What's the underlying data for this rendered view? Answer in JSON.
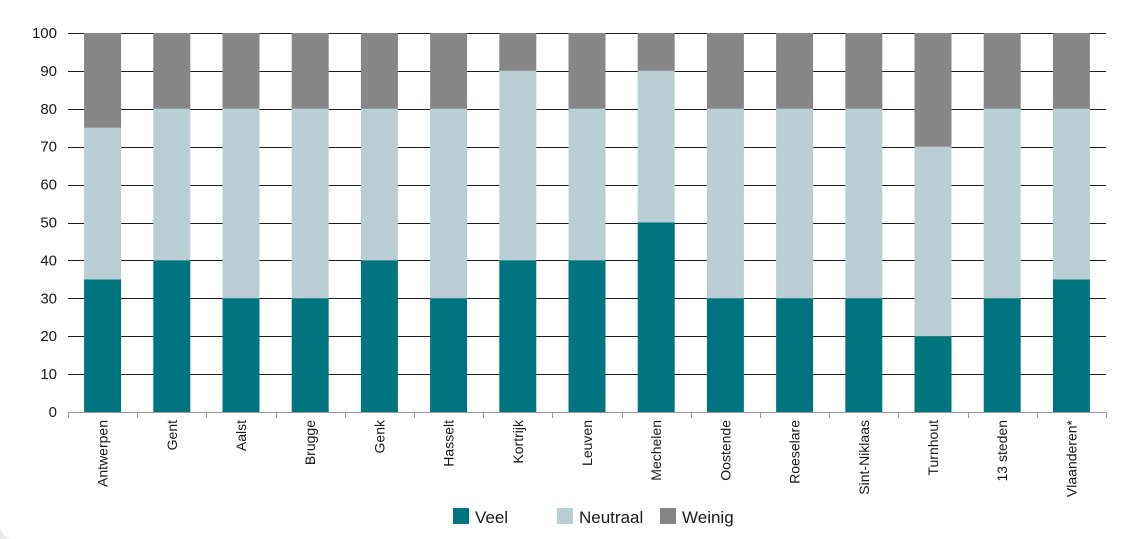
{
  "chart_data": {
    "type": "bar",
    "stacked": true,
    "categories": [
      "Antwerpen",
      "Gent",
      "Aalst",
      "Brugge",
      "Genk",
      "Hasselt",
      "Kortrijk",
      "Leuven",
      "Mechelen",
      "Oostende",
      "Roeselare",
      "Sint-Niklaas",
      "Turnhout",
      "13 steden",
      "Vlaanderen*"
    ],
    "series": [
      {
        "name": "Veel",
        "color": "#007580",
        "values": [
          35,
          40,
          30,
          30,
          40,
          30,
          40,
          40,
          50,
          30,
          30,
          30,
          20,
          30,
          35
        ]
      },
      {
        "name": "Neutraal",
        "color": "#b9cfd4",
        "values": [
          40,
          40,
          50,
          50,
          40,
          50,
          50,
          40,
          40,
          50,
          50,
          50,
          50,
          50,
          45
        ]
      },
      {
        "name": "Weinig",
        "color": "#878787",
        "values": [
          25,
          20,
          20,
          20,
          20,
          20,
          10,
          20,
          10,
          20,
          20,
          20,
          30,
          20,
          20
        ]
      }
    ],
    "yticks": [
      0,
      10,
      20,
      30,
      40,
      50,
      60,
      70,
      80,
      90,
      100
    ],
    "ylim": [
      0,
      100
    ],
    "grid": true,
    "legend_position": "bottom-center"
  }
}
